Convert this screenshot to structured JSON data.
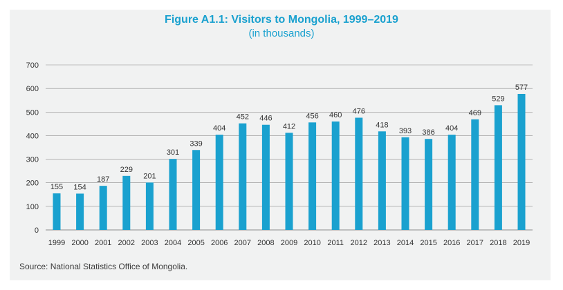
{
  "chart_data": {
    "type": "bar",
    "title": "Figure A1.1: Visitors to Mongolia, 1999–2019",
    "subtitle": "(in thousands)",
    "xlabel": "",
    "ylabel": "",
    "ylim": [
      0,
      700
    ],
    "yticks": [
      0,
      100,
      200,
      300,
      400,
      500,
      600,
      700
    ],
    "grid": true,
    "categories": [
      "1999",
      "2000",
      "2001",
      "2002",
      "2003",
      "2004",
      "2005",
      "2006",
      "2007",
      "2008",
      "2009",
      "2010",
      "2011",
      "2012",
      "2013",
      "2014",
      "2015",
      "2016",
      "2017",
      "2018",
      "2019"
    ],
    "values": [
      155,
      154,
      187,
      229,
      201,
      301,
      339,
      404,
      452,
      446,
      412,
      456,
      460,
      476,
      418,
      393,
      386,
      404,
      469,
      529,
      577
    ],
    "source": "Source: National Statistics Office of Mongolia."
  },
  "colors": {
    "bar": "#1aa1cf",
    "title": "#1aa1cf",
    "grid": "#8c8c8c"
  }
}
